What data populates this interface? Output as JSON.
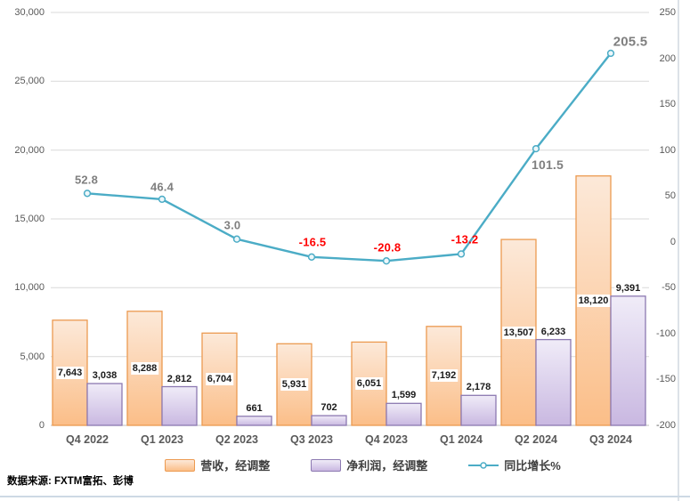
{
  "source_note": "数据来源: FXTM富拓、彭博",
  "chart_data": {
    "type": "combo",
    "title": "",
    "categories": [
      "Q4 2022",
      "Q1 2023",
      "Q2 2023",
      "Q3 2023",
      "Q4 2023",
      "Q1 2024",
      "Q2 2024",
      "Q3 2024"
    ],
    "series": [
      {
        "name": "营收，经调整",
        "type": "bar",
        "axis": "left",
        "values": [
          7643,
          8288,
          6704,
          5931,
          6051,
          7192,
          13507,
          18120
        ],
        "value_labels": [
          "7,643",
          "8,288",
          "6,704",
          "5,931",
          "6,051",
          "7,192",
          "13,507",
          "18,120"
        ],
        "fill_top": "#FCE9D9",
        "fill_bottom": "#FBBE88",
        "border": "#EC9A50"
      },
      {
        "name": "净利润，经调整",
        "type": "bar",
        "axis": "left",
        "values": [
          3038,
          2812,
          661,
          702,
          1599,
          2178,
          6233,
          9391
        ],
        "value_labels": [
          "3,038",
          "2,812",
          "661",
          "702",
          "1,599",
          "2,178",
          "6,233",
          "9,391"
        ],
        "fill_top": "#F0ECF8",
        "fill_bottom": "#C9B8E1",
        "border": "#8C79B1"
      },
      {
        "name": "同比增长%",
        "type": "line",
        "axis": "right",
        "color": "#4BACC6",
        "values": [
          52.8,
          46.4,
          3.0,
          -16.5,
          -20.8,
          -13.2,
          101.5,
          205.5
        ],
        "value_labels": [
          "52.8",
          "46.4",
          "3.0",
          "-16.5",
          "-20.8",
          "-13.2",
          "101.5",
          "205.5"
        ],
        "label_color_positive": "#7F7F7F",
        "label_color_negative": "#FF0000",
        "label_offsets": [
          [
            -1,
            -15
          ],
          [
            0,
            -14
          ],
          [
            -5,
            -16
          ],
          [
            1,
            -17
          ],
          [
            1,
            -15
          ],
          [
            4,
            -16
          ],
          [
            13,
            18
          ],
          [
            22,
            -13
          ]
        ],
        "label_sizes": [
          13,
          13,
          13,
          13,
          13,
          13,
          14,
          15
        ]
      }
    ],
    "left_axis": {
      "min": 0,
      "max": 30000,
      "step": 5000,
      "tick_labels": [
        "0",
        "5,000",
        "10,000",
        "15,000",
        "20,000",
        "25,000",
        "30,000"
      ]
    },
    "right_axis": {
      "min": -200,
      "max": 250,
      "step": 50,
      "tick_labels": [
        "250",
        "200",
        "150",
        "100",
        "50",
        "0",
        "-50",
        "-100",
        "-150",
        "-200"
      ]
    },
    "grid": true,
    "legend_position": "bottom"
  },
  "colors": {
    "grid": "#D9D9D9",
    "axis_line": "#BFBFBF",
    "tick_text": "#595959",
    "marker_fill": "#EDF7FA",
    "frame": "#D6DEE6"
  }
}
